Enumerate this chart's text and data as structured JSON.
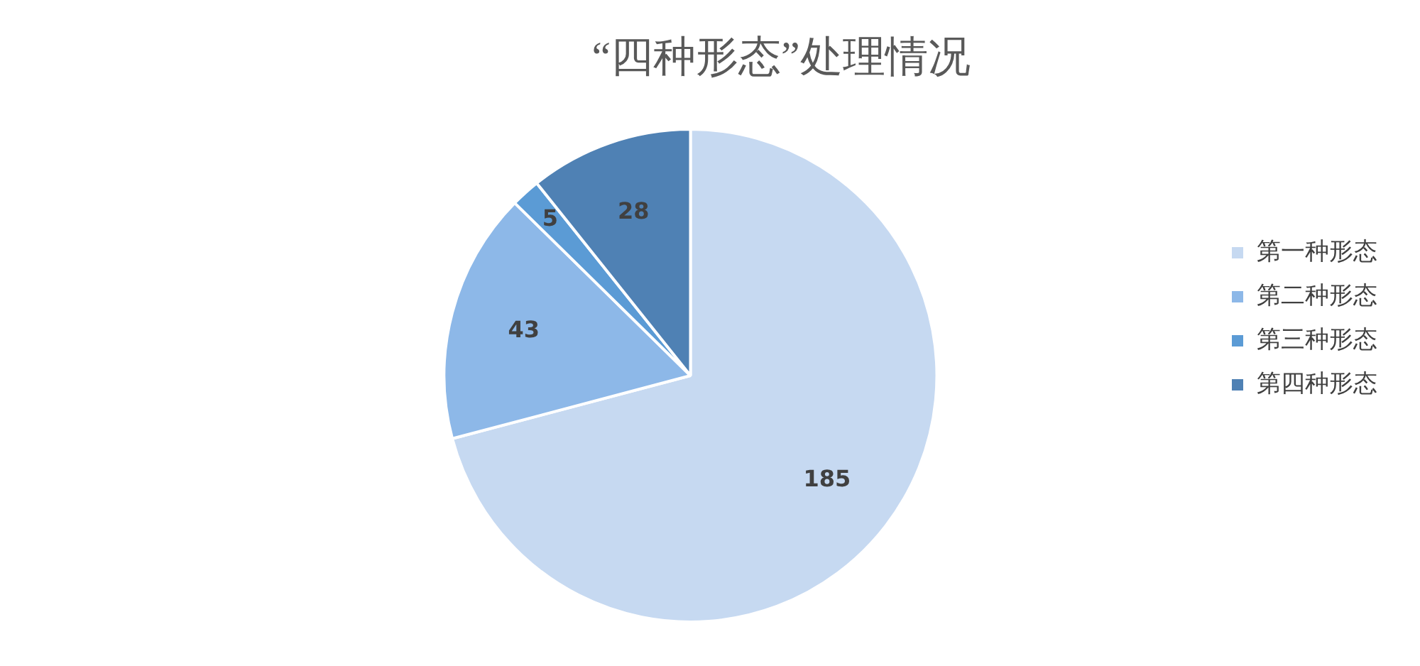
{
  "chart_data": {
    "type": "pie",
    "title": "“四种形态”处理情况",
    "categories": [
      "第一种形态",
      "第二种形态",
      "第三种形态",
      "第四种形态"
    ],
    "values": [
      185,
      43,
      5,
      28
    ],
    "colors": [
      "#c6d9f1",
      "#8db8e8",
      "#5b9bd5",
      "#4f81b4"
    ],
    "data_labels": true,
    "legend": "right"
  }
}
